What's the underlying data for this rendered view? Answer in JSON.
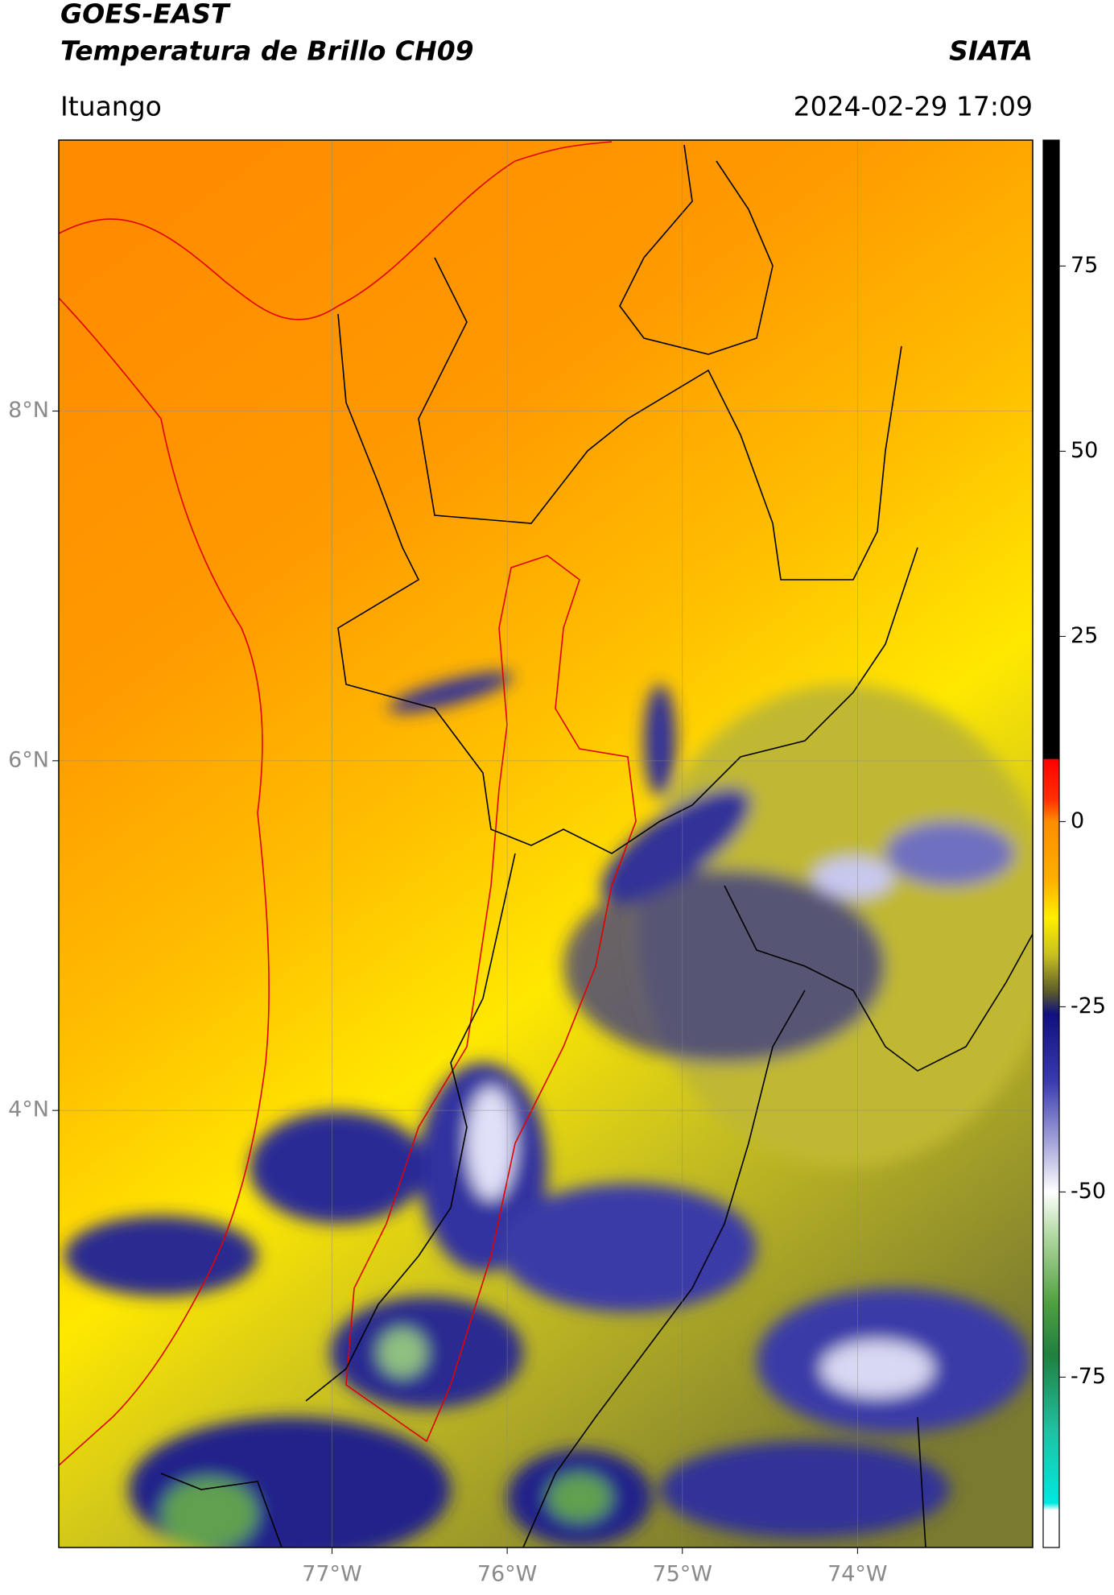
{
  "header": {
    "title": "GOES-EAST",
    "subtitle": "Temperatura de Brillo CH09",
    "brand": "SIATA",
    "location": "Ituango",
    "datetime": "2024-02-29 17:09"
  },
  "map": {
    "xlim": [
      -78.56,
      -73.0
    ],
    "ylim": [
      1.5,
      9.55
    ],
    "xticks": [
      {
        "value": -77,
        "label": "77°W"
      },
      {
        "value": -76,
        "label": "76°W"
      },
      {
        "value": -75,
        "label": "75°W"
      },
      {
        "value": -74,
        "label": "74°W"
      }
    ],
    "yticks": [
      {
        "value": 8,
        "label": "8°N"
      },
      {
        "value": 6,
        "label": "6°N"
      },
      {
        "value": 4,
        "label": "4°N"
      }
    ],
    "grid": true
  },
  "colorbar": {
    "lim": [
      -98,
      92
    ],
    "ticks": [
      75,
      50,
      25,
      0,
      -25,
      -50,
      -75
    ],
    "stops": [
      {
        "value": 92,
        "color": "#000000"
      },
      {
        "value": 8.5,
        "color": "#000000"
      },
      {
        "value": 8.4,
        "color": "#ff0000"
      },
      {
        "value": 3,
        "color": "#ff3000"
      },
      {
        "value": 0,
        "color": "#ff8c00"
      },
      {
        "value": -8,
        "color": "#ffb000"
      },
      {
        "value": -13,
        "color": "#ffee00"
      },
      {
        "value": -18,
        "color": "#c8c020"
      },
      {
        "value": -23,
        "color": "#5a5a2a"
      },
      {
        "value": -26,
        "color": "#101080"
      },
      {
        "value": -35,
        "color": "#3a3ab0"
      },
      {
        "value": -43,
        "color": "#a0a0d8"
      },
      {
        "value": -50,
        "color": "#ffffff"
      },
      {
        "value": -56,
        "color": "#b0d8a0"
      },
      {
        "value": -65,
        "color": "#50a040"
      },
      {
        "value": -72,
        "color": "#208040"
      },
      {
        "value": -82,
        "color": "#20c0a0"
      },
      {
        "value": -92,
        "color": "#00e8e0"
      },
      {
        "value": -93,
        "color": "#ffffff"
      },
      {
        "value": -98,
        "color": "#ffffff"
      }
    ]
  }
}
